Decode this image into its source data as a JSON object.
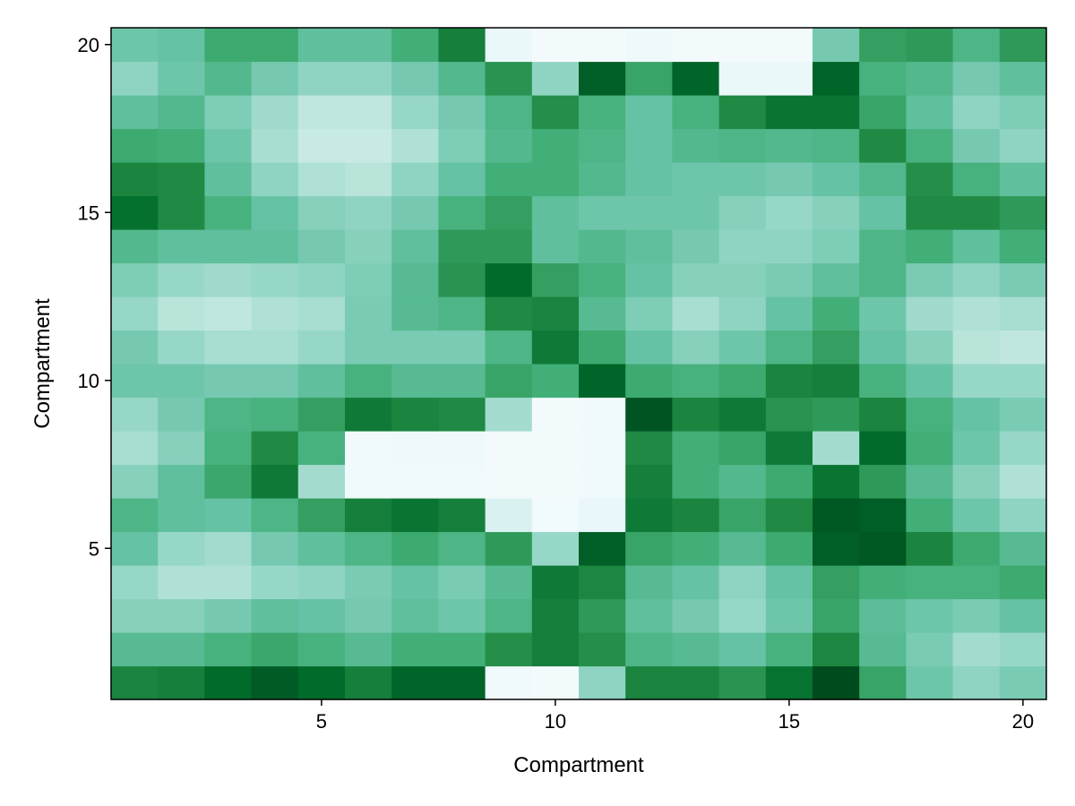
{
  "chart_data": {
    "type": "heatmap",
    "title": "",
    "xlabel": "Compartment",
    "ylabel": "Compartment",
    "x": [
      1,
      2,
      3,
      4,
      5,
      6,
      7,
      8,
      9,
      10,
      11,
      12,
      13,
      14,
      15,
      16,
      17,
      18,
      19,
      20
    ],
    "y": [
      1,
      2,
      3,
      4,
      5,
      6,
      7,
      8,
      9,
      10,
      11,
      12,
      13,
      14,
      15,
      16,
      17,
      18,
      19,
      20
    ],
    "xlim": [
      0.5,
      20.5
    ],
    "ylim": [
      0.5,
      20.5
    ],
    "xticks": [
      5,
      10,
      15,
      20
    ],
    "yticks": [
      5,
      10,
      15,
      20
    ],
    "grid": false,
    "colormap": [
      "#f7fcfd",
      "#e5f5f9",
      "#ccece6",
      "#99d8c9",
      "#66c2a4",
      "#41ae76",
      "#238b45",
      "#006d2c",
      "#00441b"
    ],
    "value_scale": "relative intensity 0 (light) to 1 (dark), no colorbar shown",
    "z": [
      [
        0.78,
        0.8,
        0.88,
        0.93,
        0.88,
        0.8,
        0.9,
        0.9,
        0.05,
        0.03,
        0.4,
        0.78,
        0.78,
        0.72,
        0.85,
        0.98,
        0.66,
        0.48,
        0.4,
        0.45
      ],
      [
        0.55,
        0.55,
        0.6,
        0.65,
        0.6,
        0.55,
        0.62,
        0.62,
        0.74,
        0.8,
        0.74,
        0.58,
        0.55,
        0.5,
        0.6,
        0.77,
        0.55,
        0.45,
        0.35,
        0.38
      ],
      [
        0.42,
        0.42,
        0.46,
        0.52,
        0.5,
        0.46,
        0.52,
        0.48,
        0.58,
        0.8,
        0.7,
        0.52,
        0.46,
        0.38,
        0.48,
        0.66,
        0.53,
        0.48,
        0.45,
        0.5
      ],
      [
        0.38,
        0.32,
        0.32,
        0.38,
        0.4,
        0.45,
        0.5,
        0.45,
        0.55,
        0.82,
        0.77,
        0.55,
        0.5,
        0.4,
        0.5,
        0.68,
        0.62,
        0.6,
        0.6,
        0.64
      ],
      [
        0.5,
        0.38,
        0.35,
        0.46,
        0.52,
        0.58,
        0.64,
        0.58,
        0.7,
        0.38,
        0.92,
        0.66,
        0.62,
        0.55,
        0.64,
        0.92,
        0.94,
        0.78,
        0.64,
        0.55
      ],
      [
        0.58,
        0.52,
        0.5,
        0.58,
        0.68,
        0.8,
        0.84,
        0.8,
        0.18,
        0.04,
        0.1,
        0.82,
        0.78,
        0.66,
        0.76,
        0.94,
        0.92,
        0.62,
        0.48,
        0.4
      ],
      [
        0.42,
        0.52,
        0.65,
        0.82,
        0.35,
        0.05,
        0.05,
        0.05,
        0.03,
        0.03,
        0.05,
        0.8,
        0.62,
        0.56,
        0.64,
        0.84,
        0.7,
        0.55,
        0.42,
        0.32
      ],
      [
        0.34,
        0.42,
        0.6,
        0.76,
        0.6,
        0.05,
        0.06,
        0.06,
        0.03,
        0.03,
        0.05,
        0.76,
        0.62,
        0.66,
        0.82,
        0.35,
        0.88,
        0.62,
        0.48,
        0.38
      ],
      [
        0.38,
        0.46,
        0.58,
        0.6,
        0.68,
        0.82,
        0.78,
        0.76,
        0.35,
        0.03,
        0.05,
        0.95,
        0.78,
        0.82,
        0.72,
        0.7,
        0.78,
        0.6,
        0.5,
        0.45
      ],
      [
        0.48,
        0.48,
        0.46,
        0.46,
        0.52,
        0.6,
        0.55,
        0.55,
        0.66,
        0.62,
        0.9,
        0.64,
        0.6,
        0.64,
        0.78,
        0.8,
        0.6,
        0.5,
        0.38,
        0.38
      ],
      [
        0.46,
        0.38,
        0.34,
        0.34,
        0.38,
        0.45,
        0.45,
        0.45,
        0.58,
        0.82,
        0.64,
        0.5,
        0.42,
        0.48,
        0.58,
        0.68,
        0.5,
        0.42,
        0.3,
        0.28
      ],
      [
        0.38,
        0.3,
        0.28,
        0.32,
        0.34,
        0.45,
        0.55,
        0.58,
        0.76,
        0.78,
        0.55,
        0.44,
        0.34,
        0.4,
        0.5,
        0.62,
        0.48,
        0.36,
        0.32,
        0.34
      ],
      [
        0.44,
        0.38,
        0.36,
        0.38,
        0.4,
        0.44,
        0.55,
        0.72,
        0.88,
        0.68,
        0.6,
        0.5,
        0.42,
        0.42,
        0.45,
        0.52,
        0.58,
        0.45,
        0.4,
        0.45
      ],
      [
        0.56,
        0.52,
        0.52,
        0.52,
        0.46,
        0.42,
        0.52,
        0.7,
        0.7,
        0.52,
        0.56,
        0.52,
        0.46,
        0.4,
        0.4,
        0.44,
        0.58,
        0.62,
        0.52,
        0.62
      ],
      [
        0.86,
        0.76,
        0.6,
        0.5,
        0.42,
        0.4,
        0.46,
        0.6,
        0.68,
        0.52,
        0.48,
        0.48,
        0.48,
        0.42,
        0.38,
        0.42,
        0.5,
        0.76,
        0.76,
        0.7
      ],
      [
        0.78,
        0.76,
        0.52,
        0.4,
        0.32,
        0.3,
        0.4,
        0.5,
        0.62,
        0.62,
        0.56,
        0.5,
        0.48,
        0.48,
        0.46,
        0.5,
        0.56,
        0.74,
        0.6,
        0.52
      ],
      [
        0.64,
        0.62,
        0.48,
        0.34,
        0.26,
        0.26,
        0.32,
        0.44,
        0.56,
        0.62,
        0.58,
        0.5,
        0.56,
        0.58,
        0.56,
        0.58,
        0.76,
        0.6,
        0.46,
        0.4
      ],
      [
        0.52,
        0.56,
        0.44,
        0.36,
        0.28,
        0.28,
        0.38,
        0.46,
        0.58,
        0.74,
        0.6,
        0.5,
        0.6,
        0.76,
        0.84,
        0.84,
        0.66,
        0.52,
        0.4,
        0.44
      ],
      [
        0.4,
        0.48,
        0.56,
        0.46,
        0.4,
        0.4,
        0.46,
        0.56,
        0.72,
        0.4,
        0.92,
        0.66,
        0.9,
        0.08,
        0.08,
        0.9,
        0.6,
        0.56,
        0.46,
        0.52
      ],
      [
        0.48,
        0.5,
        0.64,
        0.64,
        0.52,
        0.52,
        0.62,
        0.8,
        0.08,
        0.03,
        0.03,
        0.06,
        0.03,
        0.03,
        0.03,
        0.46,
        0.68,
        0.7,
        0.58,
        0.7
      ]
    ]
  }
}
